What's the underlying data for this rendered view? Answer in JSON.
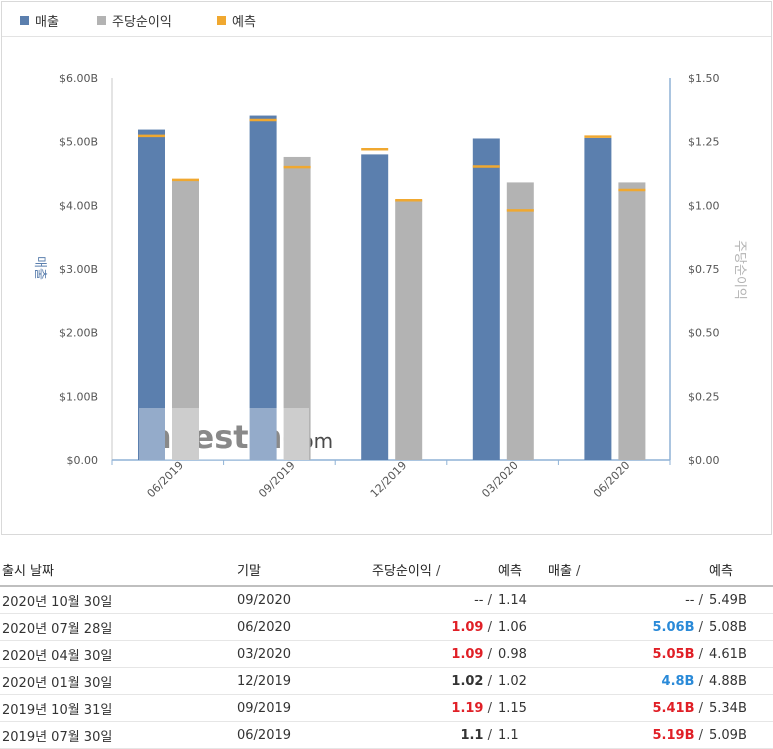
{
  "legend": [
    {
      "label": "매출",
      "color": "#5b7fae"
    },
    {
      "label": "주당순이익",
      "color": "#b3b3b3"
    },
    {
      "label": "예측",
      "color": "#f0a830"
    }
  ],
  "chart_data": {
    "type": "bar",
    "categories": [
      "06/2019",
      "09/2019",
      "12/2019",
      "03/2020",
      "06/2020"
    ],
    "series": [
      {
        "name": "매출",
        "axis": "left",
        "color": "#5b7fae",
        "values": [
          5.19,
          5.41,
          4.8,
          5.05,
          5.06
        ]
      },
      {
        "name": "주당순이익",
        "axis": "right",
        "color": "#b3b3b3",
        "values": [
          1.1,
          1.19,
          1.02,
          1.09,
          1.09
        ]
      },
      {
        "name": "예측",
        "color": "#f0a830",
        "revenue_forecast": [
          5.09,
          5.34,
          4.88,
          4.61,
          5.08
        ],
        "eps_forecast": [
          1.1,
          1.15,
          1.02,
          0.98,
          1.06
        ]
      }
    ],
    "ylabel_left": "매출",
    "ylabel_right": "주당순이익",
    "yticks_left": [
      "$0.00",
      "$1.00B",
      "$2.00B",
      "$3.00B",
      "$4.00B",
      "$5.00B",
      "$6.00B"
    ],
    "yticks_right": [
      "$0.00",
      "$0.25",
      "$0.50",
      "$0.75",
      "$1.00",
      "$1.25",
      "$1.50"
    ],
    "ylim_left": [
      0,
      6
    ],
    "ylim_right": [
      0,
      1.5
    ],
    "grid": false,
    "legend_position": "top-left"
  },
  "watermark": {
    "brand": "Investing",
    "suffix": ".com"
  },
  "table": {
    "headers": {
      "date": "출시 날짜",
      "period": "기말",
      "eps": "주당순이익",
      "eps_f": "예측",
      "rev": "매출",
      "rev_f": "예측",
      "sep": " / "
    },
    "rows": [
      {
        "date": "2020년 10월 30일",
        "period": "09/2020",
        "eps": "--",
        "eps_f": "1.14",
        "rev": "--",
        "rev_f": "5.49B",
        "eps_class": "neu-plain",
        "rev_class": "neu-plain"
      },
      {
        "date": "2020년 07월 28일",
        "period": "06/2020",
        "eps": "1.09",
        "eps_f": "1.06",
        "rev": "5.06B",
        "rev_f": "5.08B",
        "eps_class": "neg",
        "rev_class": "pos"
      },
      {
        "date": "2020년 04월 30일",
        "period": "03/2020",
        "eps": "1.09",
        "eps_f": "0.98",
        "rev": "5.05B",
        "rev_f": "4.61B",
        "eps_class": "neg",
        "rev_class": "neg"
      },
      {
        "date": "2020년 01월 30일",
        "period": "12/2019",
        "eps": "1.02",
        "eps_f": "1.02",
        "rev": "4.8B",
        "rev_f": "4.88B",
        "eps_class": "neu",
        "rev_class": "pos"
      },
      {
        "date": "2019년 10월 31일",
        "period": "09/2019",
        "eps": "1.19",
        "eps_f": "1.15",
        "rev": "5.41B",
        "rev_f": "5.34B",
        "eps_class": "neg",
        "rev_class": "neg"
      },
      {
        "date": "2019년 07월 30일",
        "period": "06/2019",
        "eps": "1.1",
        "eps_f": "1.1",
        "rev": "5.19B",
        "rev_f": "5.09B",
        "eps_class": "neu",
        "rev_class": "neg"
      }
    ]
  }
}
